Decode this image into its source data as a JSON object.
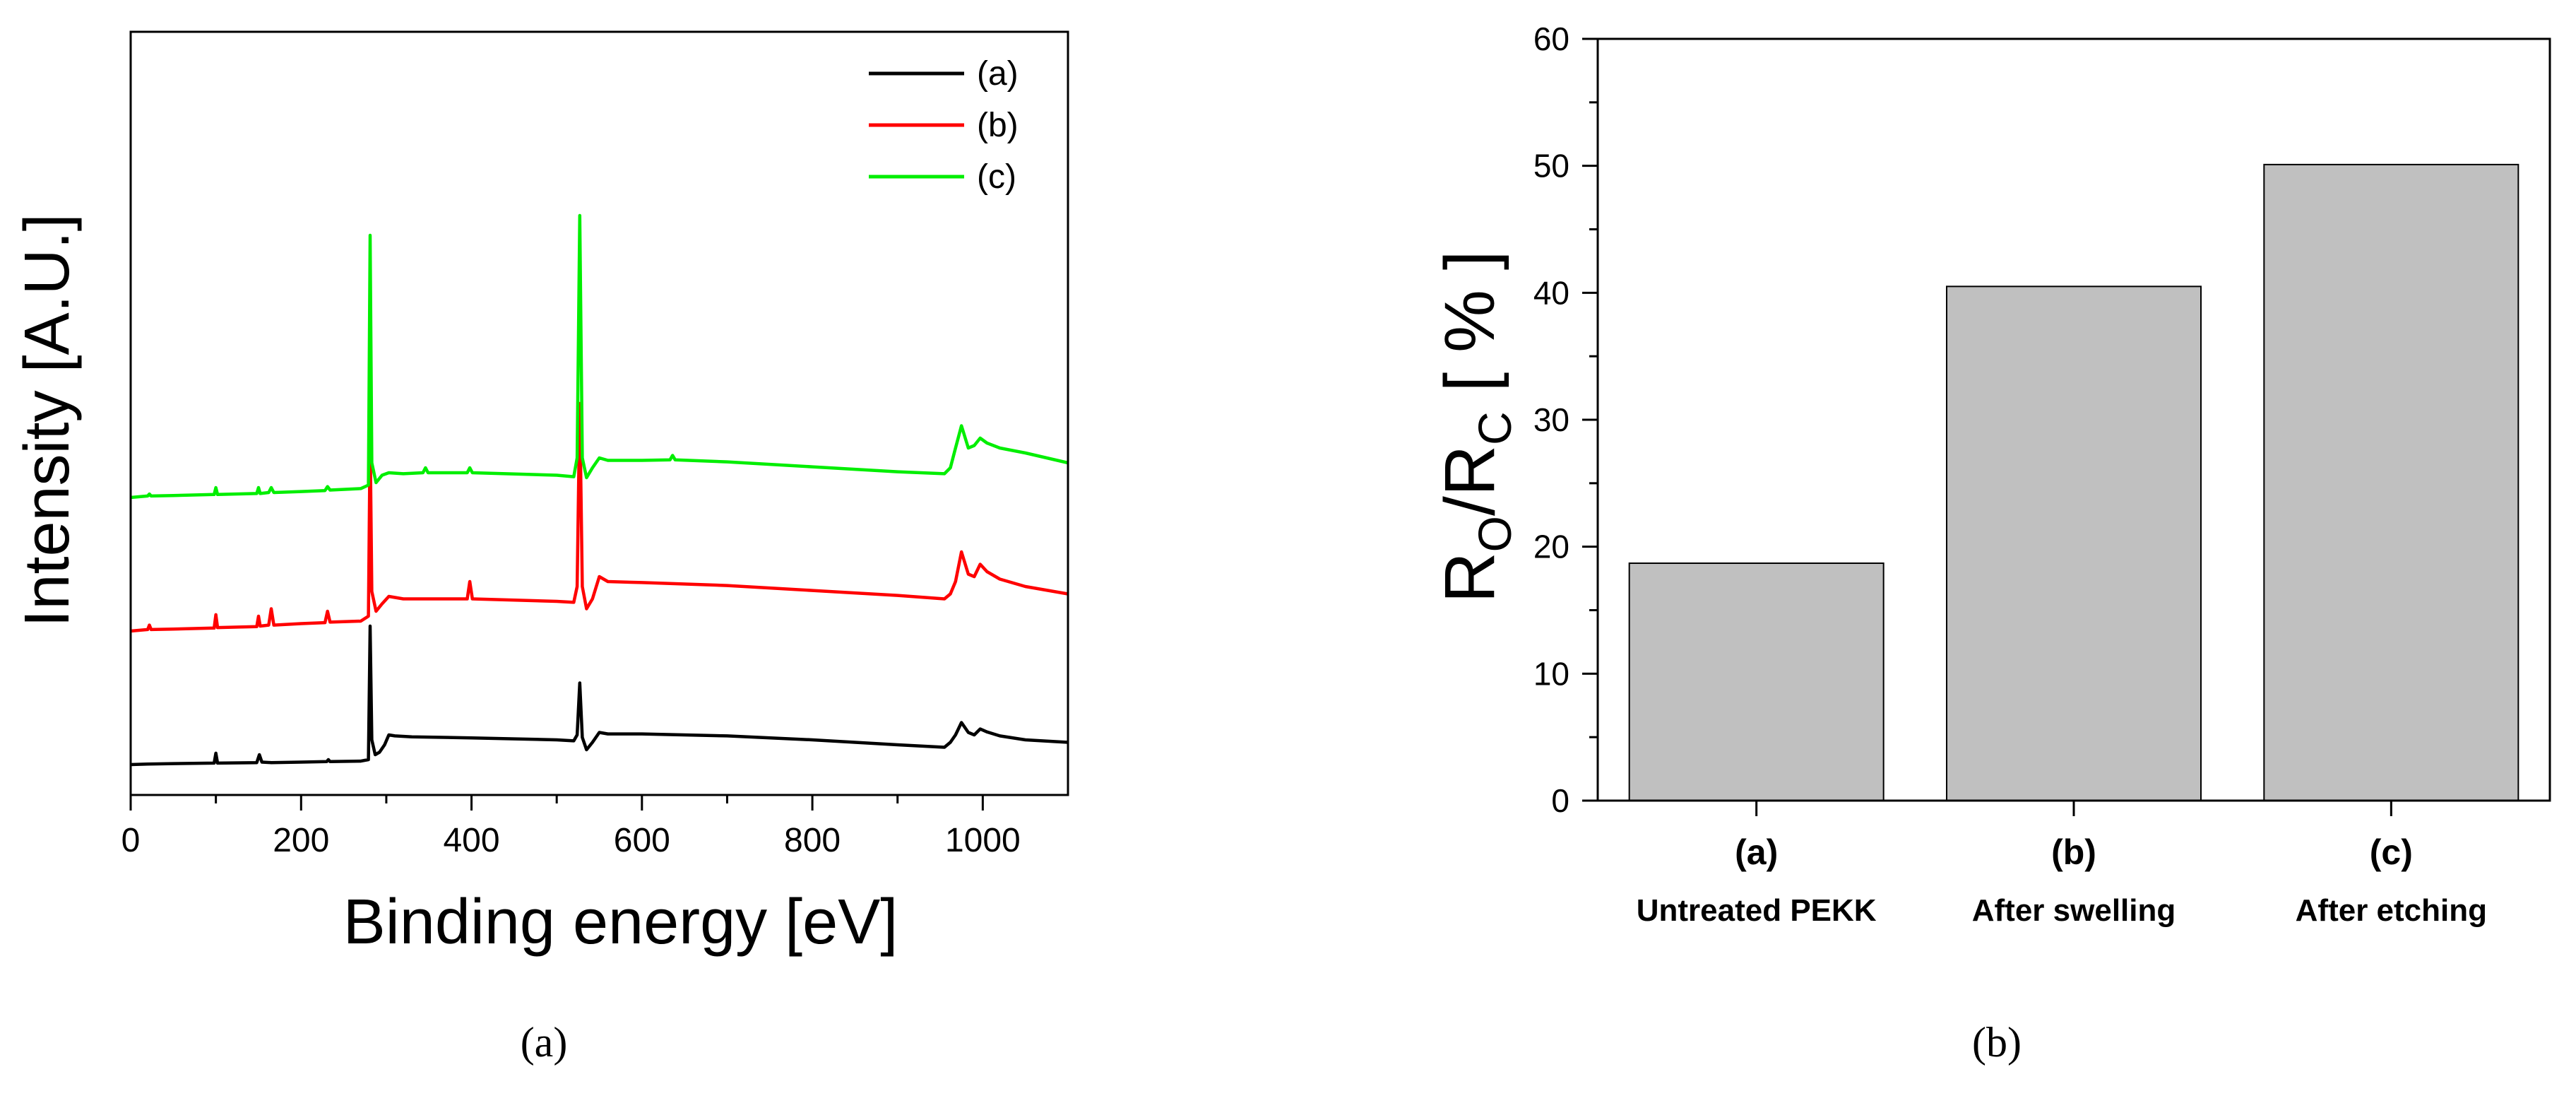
{
  "chart_data": [
    {
      "panel_label": "(a)",
      "type": "line",
      "xlabel": "Binding energy [eV]",
      "ylabel": "Intensity [A.U.]",
      "xlim": [
        0,
        1100
      ],
      "xticks": [
        0,
        200,
        400,
        600,
        800,
        1000
      ],
      "yticks": [],
      "legend": {
        "position": "top-right",
        "entries": [
          "(a)",
          "(b)",
          "(c)"
        ]
      },
      "series": [
        {
          "name": "(a)",
          "color": "#000000",
          "baseline": 0.0,
          "points": [
            [
              0,
              0.0
            ],
            [
              20,
              0.01
            ],
            [
              50,
              0.02
            ],
            [
              98,
              0.03
            ],
            [
              100,
              0.23
            ],
            [
              102,
              0.03
            ],
            [
              148,
              0.04
            ],
            [
              151,
              0.2
            ],
            [
              154,
              0.05
            ],
            [
              165,
              0.04
            ],
            [
              200,
              0.05
            ],
            [
              230,
              0.06
            ],
            [
              232,
              0.1
            ],
            [
              234,
              0.06
            ],
            [
              270,
              0.07
            ],
            [
              279,
              0.1
            ],
            [
              281,
              2.8
            ],
            [
              283,
              0.5
            ],
            [
              287,
              0.2
            ],
            [
              292,
              0.25
            ],
            [
              298,
              0.4
            ],
            [
              303,
              0.6
            ],
            [
              310,
              0.58
            ],
            [
              330,
              0.56
            ],
            [
              400,
              0.54
            ],
            [
              500,
              0.5
            ],
            [
              520,
              0.48
            ],
            [
              524,
              0.6
            ],
            [
              527,
              1.65
            ],
            [
              530,
              0.55
            ],
            [
              535,
              0.3
            ],
            [
              542,
              0.45
            ],
            [
              550,
              0.65
            ],
            [
              560,
              0.62
            ],
            [
              600,
              0.62
            ],
            [
              700,
              0.58
            ],
            [
              800,
              0.5
            ],
            [
              900,
              0.4
            ],
            [
              955,
              0.35
            ],
            [
              962,
              0.45
            ],
            [
              968,
              0.6
            ],
            [
              975,
              0.85
            ],
            [
              983,
              0.65
            ],
            [
              990,
              0.6
            ],
            [
              997,
              0.72
            ],
            [
              1005,
              0.66
            ],
            [
              1020,
              0.58
            ],
            [
              1050,
              0.5
            ],
            [
              1100,
              0.45
            ]
          ]
        },
        {
          "name": "(b)",
          "color": "#ff0000",
          "baseline": 2.7,
          "points": [
            [
              0,
              0.0
            ],
            [
              20,
              0.03
            ],
            [
              22,
              0.12
            ],
            [
              24,
              0.03
            ],
            [
              50,
              0.04
            ],
            [
              98,
              0.06
            ],
            [
              100,
              0.33
            ],
            [
              102,
              0.07
            ],
            [
              148,
              0.09
            ],
            [
              150,
              0.3
            ],
            [
              152,
              0.1
            ],
            [
              162,
              0.12
            ],
            [
              165,
              0.45
            ],
            [
              168,
              0.12
            ],
            [
              200,
              0.15
            ],
            [
              228,
              0.17
            ],
            [
              231,
              0.4
            ],
            [
              234,
              0.18
            ],
            [
              270,
              0.2
            ],
            [
              279,
              0.3
            ],
            [
              281,
              4.0
            ],
            [
              283,
              0.8
            ],
            [
              288,
              0.4
            ],
            [
              295,
              0.55
            ],
            [
              303,
              0.7
            ],
            [
              320,
              0.65
            ],
            [
              395,
              0.65
            ],
            [
              398,
              1.0
            ],
            [
              401,
              0.65
            ],
            [
              500,
              0.6
            ],
            [
              520,
              0.58
            ],
            [
              524,
              0.9
            ],
            [
              527,
              4.6
            ],
            [
              530,
              0.9
            ],
            [
              535,
              0.45
            ],
            [
              542,
              0.65
            ],
            [
              550,
              1.1
            ],
            [
              560,
              1.0
            ],
            [
              600,
              0.98
            ],
            [
              700,
              0.92
            ],
            [
              800,
              0.82
            ],
            [
              900,
              0.72
            ],
            [
              955,
              0.65
            ],
            [
              962,
              0.75
            ],
            [
              968,
              1.0
            ],
            [
              975,
              1.6
            ],
            [
              983,
              1.15
            ],
            [
              990,
              1.1
            ],
            [
              997,
              1.35
            ],
            [
              1005,
              1.2
            ],
            [
              1020,
              1.05
            ],
            [
              1050,
              0.9
            ],
            [
              1100,
              0.75
            ]
          ]
        },
        {
          "name": "(c)",
          "color": "#00ee00",
          "baseline": 5.4,
          "points": [
            [
              0,
              0.0
            ],
            [
              20,
              0.03
            ],
            [
              22,
              0.07
            ],
            [
              24,
              0.03
            ],
            [
              50,
              0.04
            ],
            [
              98,
              0.06
            ],
            [
              100,
              0.2
            ],
            [
              102,
              0.06
            ],
            [
              148,
              0.08
            ],
            [
              150,
              0.2
            ],
            [
              152,
              0.08
            ],
            [
              162,
              0.1
            ],
            [
              165,
              0.2
            ],
            [
              168,
              0.1
            ],
            [
              200,
              0.12
            ],
            [
              228,
              0.14
            ],
            [
              231,
              0.22
            ],
            [
              234,
              0.15
            ],
            [
              270,
              0.18
            ],
            [
              279,
              0.25
            ],
            [
              281,
              5.3
            ],
            [
              283,
              0.7
            ],
            [
              288,
              0.3
            ],
            [
              295,
              0.45
            ],
            [
              303,
              0.5
            ],
            [
              320,
              0.48
            ],
            [
              343,
              0.5
            ],
            [
              346,
              0.6
            ],
            [
              349,
              0.5
            ],
            [
              395,
              0.5
            ],
            [
              398,
              0.6
            ],
            [
              401,
              0.5
            ],
            [
              500,
              0.45
            ],
            [
              520,
              0.42
            ],
            [
              524,
              0.8
            ],
            [
              527,
              5.7
            ],
            [
              530,
              0.8
            ],
            [
              535,
              0.4
            ],
            [
              542,
              0.6
            ],
            [
              550,
              0.8
            ],
            [
              560,
              0.75
            ],
            [
              600,
              0.75
            ],
            [
              633,
              0.76
            ],
            [
              636,
              0.85
            ],
            [
              639,
              0.76
            ],
            [
              700,
              0.72
            ],
            [
              800,
              0.62
            ],
            [
              900,
              0.52
            ],
            [
              955,
              0.48
            ],
            [
              962,
              0.6
            ],
            [
              968,
              1.0
            ],
            [
              975,
              1.45
            ],
            [
              983,
              1.0
            ],
            [
              990,
              1.05
            ],
            [
              997,
              1.2
            ],
            [
              1005,
              1.1
            ],
            [
              1020,
              1.0
            ],
            [
              1050,
              0.9
            ],
            [
              1100,
              0.7
            ]
          ]
        }
      ]
    },
    {
      "panel_label": "(b)",
      "type": "bar",
      "ylabel_main": "R",
      "ylabel_sub1": "O",
      "ylabel_mid": "/R",
      "ylabel_sub2": "C",
      "ylabel_tail": " [ % ]",
      "ylim": [
        0,
        60
      ],
      "yticks": [
        0,
        10,
        20,
        30,
        40,
        50,
        60
      ],
      "categories": [
        "(a)",
        "(b)",
        "(c)"
      ],
      "category_sublabels": [
        "Untreated PEKK",
        "After swelling",
        "After etching"
      ],
      "values": [
        18.7,
        40.5,
        50.1
      ],
      "bar_color": "#c0c0c0"
    }
  ],
  "captions": [
    "(a)",
    "(b)"
  ]
}
